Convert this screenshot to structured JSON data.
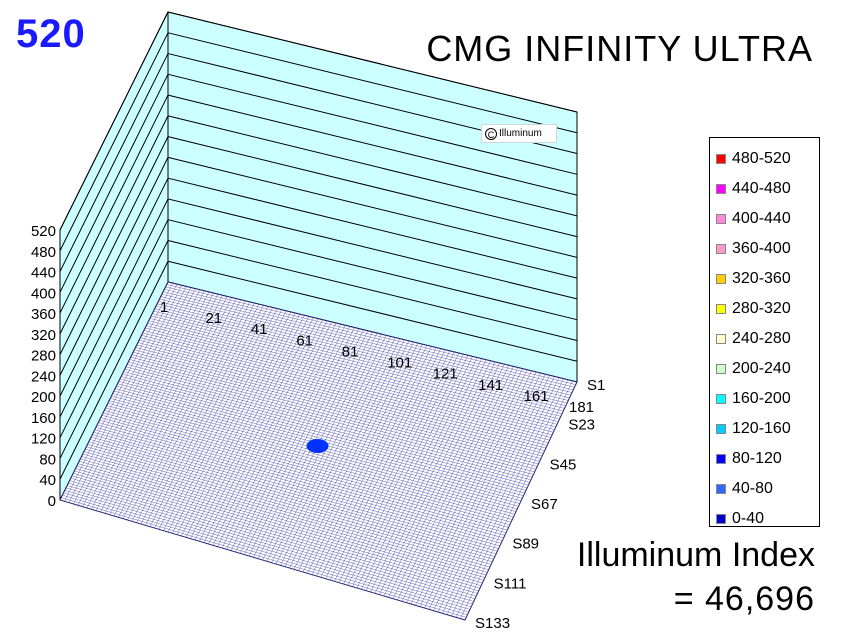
{
  "header": {
    "corner_value": "520",
    "title": "CMG INFINITY ULTRA"
  },
  "watermark": {
    "symbol": "C",
    "text": "Illuminum"
  },
  "index": {
    "label": "Illuminum Index",
    "value": "= 46,696"
  },
  "colors": {
    "wall": "#ccffff",
    "wall_lines": "#000000",
    "mesh": "#3030a0",
    "peak": "#0033ff",
    "corner_value": "#1a1aff"
  },
  "chart_data": {
    "type": "surface3d",
    "title": "CMG INFINITY ULTRA",
    "z_ticks": [
      "0",
      "40",
      "80",
      "120",
      "160",
      "200",
      "240",
      "280",
      "320",
      "360",
      "400",
      "440",
      "480",
      "520"
    ],
    "zlim": [
      0,
      520
    ],
    "x_ticks": [
      "1",
      "21",
      "41",
      "61",
      "81",
      "101",
      "121",
      "141",
      "161",
      "181"
    ],
    "y_ticks": [
      "S1",
      "S23",
      "S45",
      "S67",
      "S89",
      "S111",
      "S133"
    ],
    "peak": {
      "x": 91,
      "y": 67,
      "band": "0-40"
    },
    "legend": [
      {
        "label": "480-520",
        "color": "#ff0000"
      },
      {
        "label": "440-480",
        "color": "#ff00ff"
      },
      {
        "label": "400-440",
        "color": "#ff88dd"
      },
      {
        "label": "360-400",
        "color": "#ff99cc"
      },
      {
        "label": "320-360",
        "color": "#ffcc00"
      },
      {
        "label": "280-320",
        "color": "#ffff00"
      },
      {
        "label": "240-280",
        "color": "#ffffcc"
      },
      {
        "label": "200-240",
        "color": "#ccffcc"
      },
      {
        "label": "160-200",
        "color": "#00ffff"
      },
      {
        "label": "120-160",
        "color": "#00ccff"
      },
      {
        "label": "80-120",
        "color": "#0000ff"
      },
      {
        "label": "40-80",
        "color": "#3366ff"
      },
      {
        "label": "0-40",
        "color": "#0000cc"
      }
    ],
    "legend_position": "right"
  }
}
